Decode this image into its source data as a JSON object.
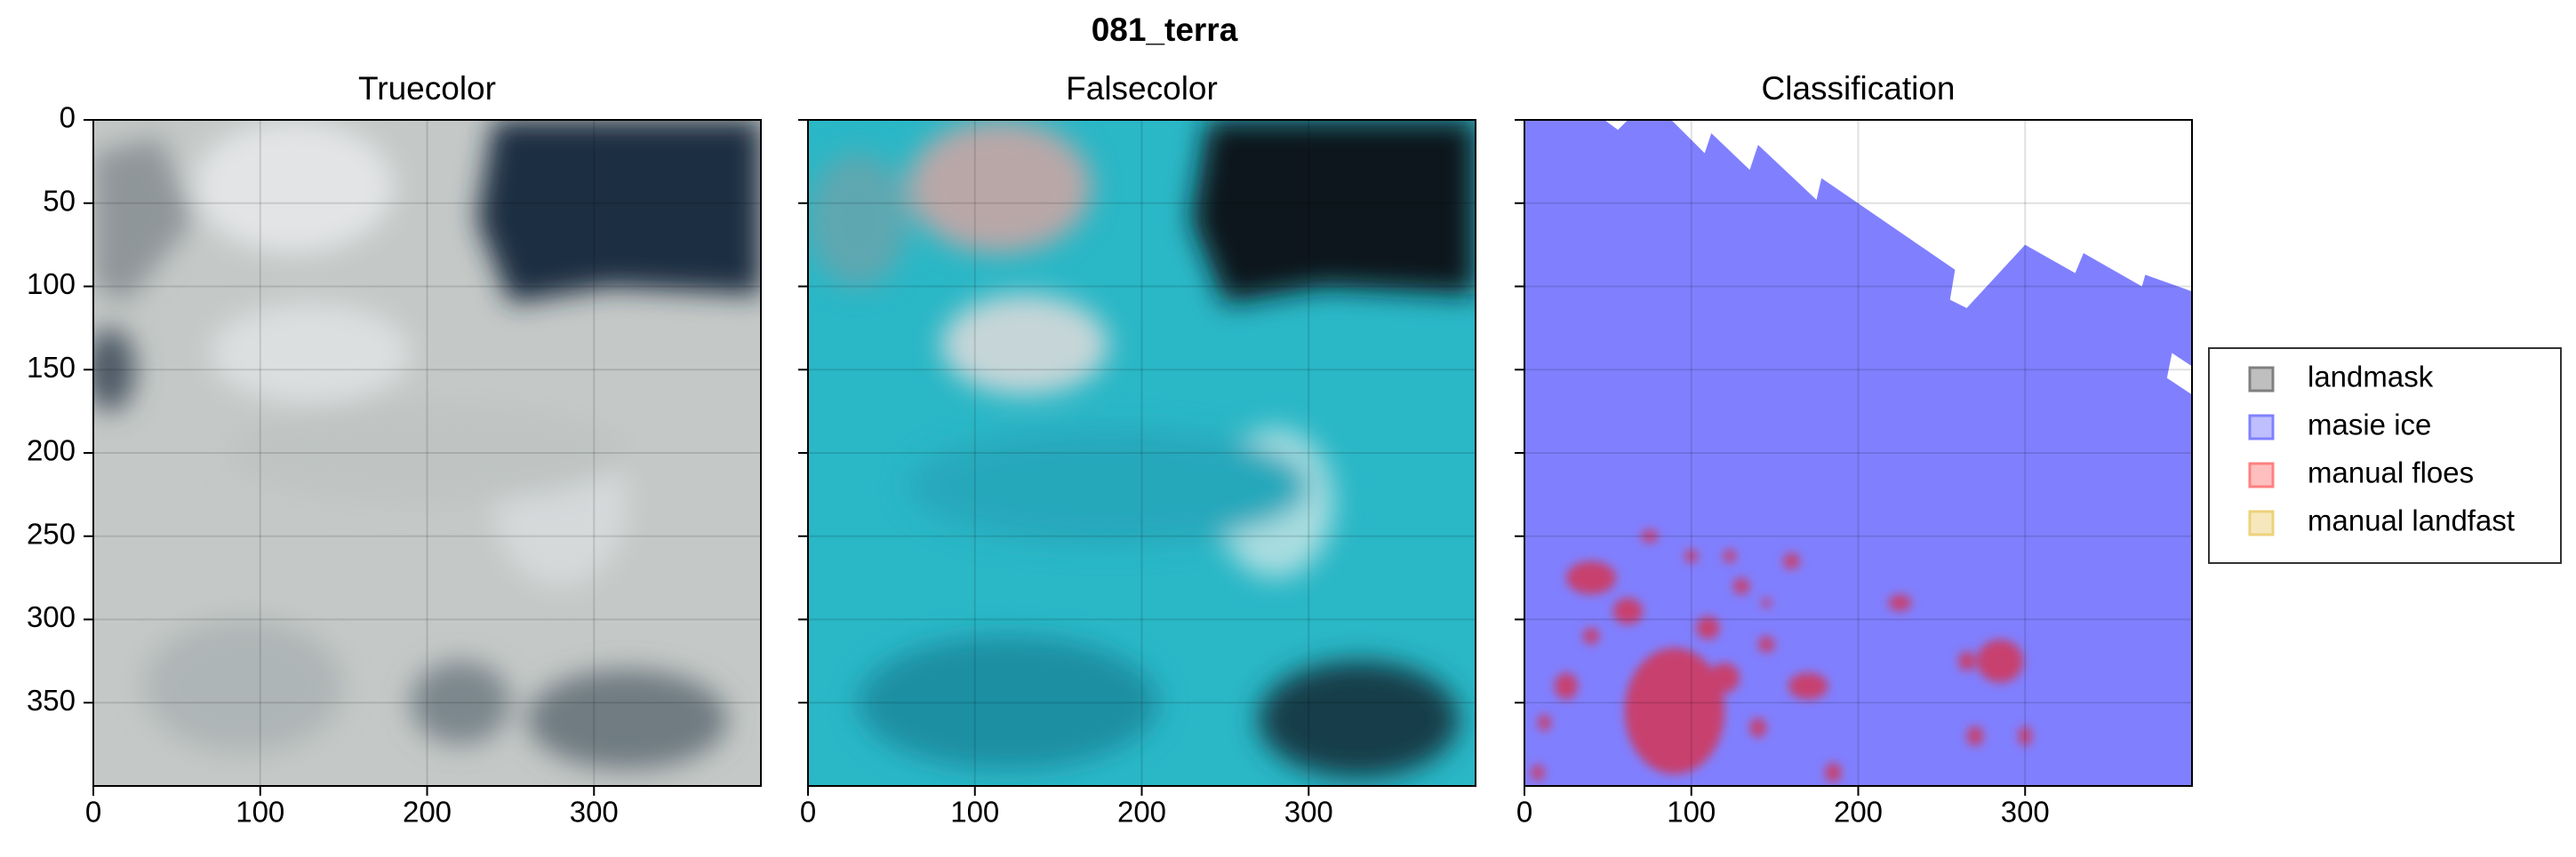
{
  "title": "081_terra",
  "chart_data": [
    {
      "type": "image",
      "title": "Truecolor",
      "xlim": [
        0,
        400
      ],
      "ylim": [
        400,
        0
      ],
      "xticks": [
        0,
        100,
        200,
        300
      ],
      "yticks": [
        0,
        50,
        100,
        150,
        200,
        250,
        300,
        350
      ],
      "grid": true
    },
    {
      "type": "image",
      "title": "Falsecolor",
      "xlim": [
        0,
        400
      ],
      "ylim": [
        400,
        0
      ],
      "xticks": [
        0,
        100,
        200,
        300
      ],
      "yticks": [
        0,
        50,
        100,
        150,
        200,
        250,
        300,
        350
      ],
      "grid": true
    },
    {
      "type": "image",
      "title": "Classification",
      "xlim": [
        0,
        400
      ],
      "ylim": [
        400,
        0
      ],
      "xticks": [
        0,
        100,
        200,
        300
      ],
      "yticks": [
        0,
        50,
        100,
        150,
        200,
        250,
        300,
        350
      ],
      "grid": true,
      "legend": {
        "loc": "outside right",
        "entries": [
          {
            "name": "landmask",
            "color": "#808080"
          },
          {
            "name": "masie ice",
            "color": "#8080ff"
          },
          {
            "name": "manual floes",
            "color": "#ff8080"
          },
          {
            "name": "manual landfast",
            "color": "#eed27a"
          }
        ]
      }
    }
  ]
}
